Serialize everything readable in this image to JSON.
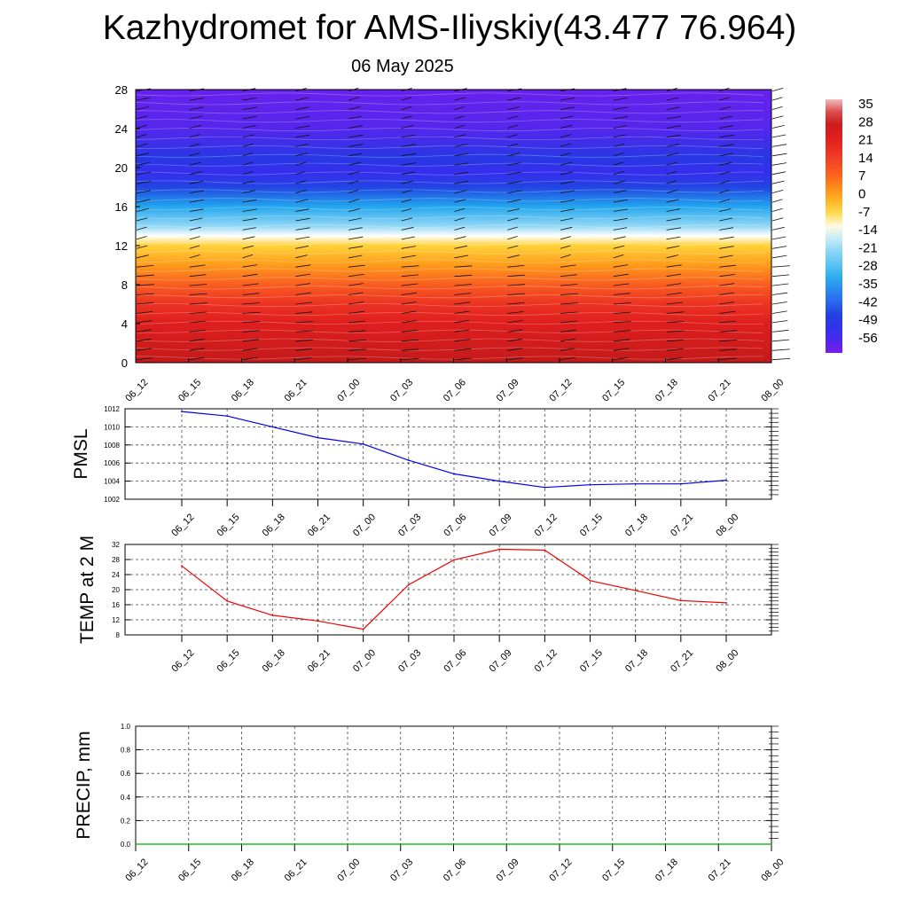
{
  "header": {
    "title": "Kazhydromet for AMS-Iliyskiy(43.477 76.964)",
    "subtitle": "06 May 2025"
  },
  "chart_data": [
    {
      "type": "heatmap",
      "title": "",
      "times": [
        "06_12",
        "06_15",
        "06_18",
        "06_21",
        "07_00",
        "07_03",
        "07_06",
        "07_09",
        "07_12",
        "07_15",
        "07_18",
        "07_21",
        "08_00"
      ],
      "y_ticks": [
        0,
        4,
        8,
        12,
        16,
        20,
        24,
        28
      ],
      "ylim": [
        0,
        28
      ],
      "colorbar": {
        "labels": [
          "35",
          "28",
          "21",
          "14",
          "7",
          "0",
          "-7",
          "-14",
          "-21",
          "-28",
          "-35",
          "-42",
          "-49",
          "-56"
        ],
        "range": [
          -60,
          38
        ]
      },
      "temperature_profile": [
        {
          "level": 0,
          "value": 30
        },
        {
          "level": 2,
          "value": 27
        },
        {
          "level": 4,
          "value": 24
        },
        {
          "level": 6,
          "value": 18
        },
        {
          "level": 8,
          "value": 10
        },
        {
          "level": 10,
          "value": 2
        },
        {
          "level": 12,
          "value": -5
        },
        {
          "level": 13,
          "value": -12
        },
        {
          "level": 14,
          "value": -20
        },
        {
          "level": 16,
          "value": -32
        },
        {
          "level": 18,
          "value": -45
        },
        {
          "level": 19.5,
          "value": -52
        },
        {
          "level": 21,
          "value": -48
        },
        {
          "level": 24,
          "value": -56
        },
        {
          "level": 28,
          "value": -58
        }
      ],
      "wind_barbs": true,
      "grid": false
    },
    {
      "type": "line",
      "ylabel": "PMSL",
      "x": [
        "06_12",
        "06_15",
        "06_18",
        "06_21",
        "07_00",
        "07_03",
        "07_06",
        "07_09",
        "07_12",
        "07_15",
        "07_18",
        "07_21",
        "08_00"
      ],
      "ylim": [
        1002,
        1012
      ],
      "y_ticks": [
        "1012",
        "1010",
        "1008",
        "1006",
        "1004",
        "1002"
      ],
      "series": [
        {
          "color": "#0000ee",
          "values": [
            1011.7,
            1011.2,
            1010.0,
            1008.8,
            1008.1,
            1006.3,
            1004.8,
            1004.0,
            1003.3,
            1003.6,
            1003.7,
            1003.7,
            1004.1
          ]
        }
      ],
      "grid": true
    },
    {
      "type": "line",
      "ylabel": "TEMP at 2 M",
      "x": [
        "06_12",
        "06_15",
        "06_18",
        "06_21",
        "07_00",
        "07_03",
        "07_06",
        "07_09",
        "07_12",
        "07_15",
        "07_18",
        "07_21",
        "08_00"
      ],
      "ylim": [
        8,
        32
      ],
      "y_ticks": [
        "32",
        "28",
        "24",
        "20",
        "16",
        "12",
        "8"
      ],
      "series": [
        {
          "color": "#ee0000",
          "values": [
            26.3,
            17.0,
            13.2,
            11.7,
            9.5,
            21.3,
            27.9,
            30.7,
            30.5,
            22.4,
            19.8,
            17.1,
            16.5
          ]
        }
      ],
      "grid": true
    },
    {
      "type": "line",
      "ylabel": "PRECIP, mm",
      "x": [
        "06_12",
        "06_15",
        "06_18",
        "06_21",
        "07_00",
        "07_03",
        "07_06",
        "07_09",
        "07_12",
        "07_15",
        "07_18",
        "07_21",
        "08_00"
      ],
      "ylim": [
        0,
        1
      ],
      "y_ticks": [
        "1.0",
        "0.8",
        "0.6",
        "0.4",
        "0.2",
        "0.0"
      ],
      "series": [
        {
          "color": "#00aa00",
          "values": [
            0,
            0,
            0,
            0,
            0,
            0,
            0,
            0,
            0,
            0,
            0,
            0,
            0
          ]
        }
      ],
      "grid": true
    }
  ]
}
